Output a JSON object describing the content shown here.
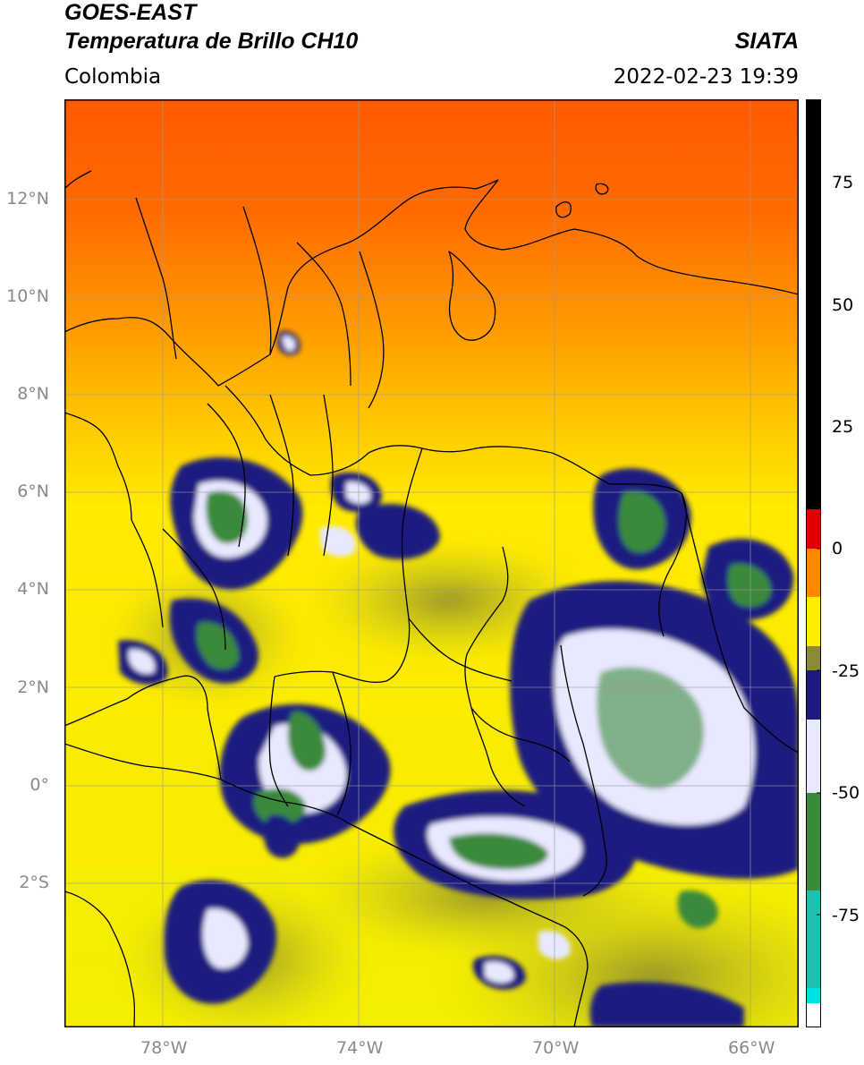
{
  "header": {
    "satellite": "GOES-EAST",
    "product": "Temperatura de Brillo CH10",
    "region": "Colombia",
    "org": "SIATA",
    "timestamp": "2022-02-23 19:39"
  },
  "map": {
    "lat_labels": [
      "12°N",
      "10°N",
      "8°N",
      "6°N",
      "4°N",
      "2°N",
      "0°",
      "2°S"
    ],
    "lon_labels": [
      "78°W",
      "74°W",
      "70°W",
      "66°W"
    ],
    "lon_range": [
      -79.8,
      -64.8
    ],
    "lat_range": [
      -5.2,
      14.0
    ],
    "gridlines": true
  },
  "colorbar": {
    "tick_labels": [
      "75",
      "50",
      "25",
      "0",
      "-25",
      "-50",
      "-75"
    ],
    "range": [
      -100,
      90
    ],
    "segments": [
      {
        "from": 8,
        "to": 90,
        "color": "#000000"
      },
      {
        "from": 0,
        "to": 8,
        "color": "#e00000"
      },
      {
        "from": -10,
        "to": 0,
        "color": "#ff8800"
      },
      {
        "from": -20,
        "to": -10,
        "color": "#ffee00"
      },
      {
        "from": -25,
        "to": -20,
        "color": "#8a8a3a"
      },
      {
        "from": -35,
        "to": -25,
        "color": "#1a1a80"
      },
      {
        "from": -50,
        "to": -35,
        "color": "#e8e8ff"
      },
      {
        "from": -70,
        "to": -50,
        "color": "#3a8a3a"
      },
      {
        "from": -90,
        "to": -70,
        "color": "#20c0b0"
      },
      {
        "from": -95,
        "to": -90,
        "color": "#00e0e0"
      },
      {
        "from": -100,
        "to": -95,
        "color": "#ffffff"
      }
    ]
  }
}
